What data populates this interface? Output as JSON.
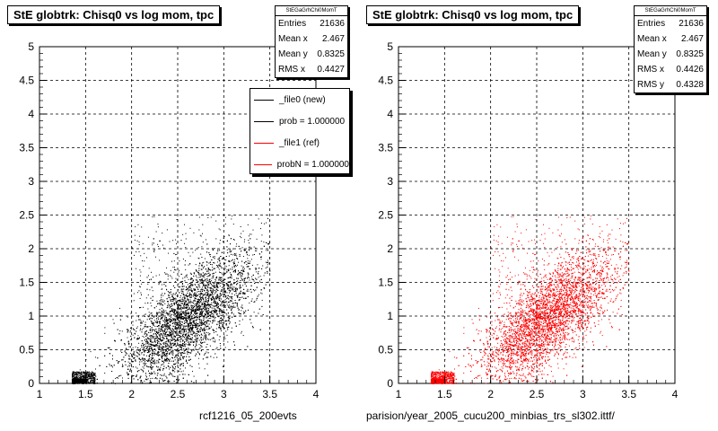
{
  "chart_data": [
    {
      "type": "scatter",
      "title": "StE globtrk: Chisq0 vs log mom, tpc",
      "xlabel": "rcf1216_05_200evts",
      "ylabel": "",
      "xlim": [
        1,
        4
      ],
      "ylim": [
        0,
        5
      ],
      "xticks": [
        "1",
        "1.5",
        "2",
        "2.5",
        "3",
        "3.5",
        "4"
      ],
      "yticks": [
        "0",
        "0.5",
        "1",
        "1.5",
        "2",
        "2.5",
        "3",
        "3.5",
        "4",
        "4.5",
        "5"
      ],
      "grid": true,
      "color": "#000000",
      "stats": {
        "name": "StEGaGrhChi0MomT",
        "entries": "21636",
        "mean_x": "2.467",
        "mean_y": "0.8325",
        "rms_x": "0.4427"
      },
      "legend": [
        "_file0 (new)",
        "prob = 1.000000",
        "_file1 (ref)",
        "probN = 1.000000"
      ],
      "legend_colors": [
        "#000000",
        "#000000",
        "#ff0000",
        "#ff0000"
      ],
      "legend_placement": "top-right",
      "density": {
        "center": [
          2.6,
          0.95
        ],
        "spread": [
          0.35,
          0.45
        ],
        "x_range": [
          1.35,
          3.5
        ],
        "y_range": [
          0.0,
          2.2
        ],
        "points_drawn": 6500
      }
    },
    {
      "type": "scatter",
      "title": "StE globtrk: Chisq0 vs log mom, tpc",
      "xlabel": "parision/year_2005_cucu200_minbias_trs_sl302.ittf/",
      "ylabel": "",
      "xlim": [
        1,
        4
      ],
      "ylim": [
        0,
        5
      ],
      "xticks": [
        "1",
        "1.5",
        "2",
        "2.5",
        "3",
        "3.5",
        "4"
      ],
      "yticks": [
        "0",
        "0.5",
        "1",
        "1.5",
        "2",
        "2.5",
        "3",
        "3.5",
        "4",
        "4.5",
        "5"
      ],
      "grid": true,
      "color": "#ff0000",
      "stats": {
        "name": "StEGaGrhChi0MomT",
        "entries": "21636",
        "mean_x": "2.467",
        "mean_y": "0.8325",
        "rms_x": "0.4426",
        "rms_y": "0.4328"
      }
    }
  ],
  "labels": {
    "entries": "Entries",
    "mean_x": "Mean x",
    "mean_y": "Mean y",
    "rms_x": "RMS x",
    "rms_y": "RMS y"
  }
}
